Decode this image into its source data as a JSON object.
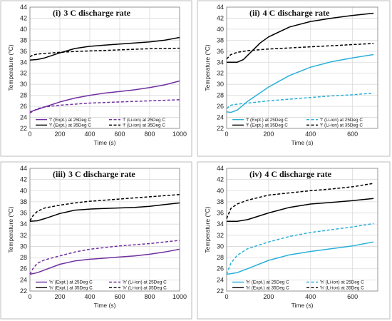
{
  "chart_data": [
    {
      "type": "line",
      "title_roman": "(i)",
      "title_text": "3 C discharge rate",
      "xlabel": "Time (s)",
      "ylabel": "Temperature (°C)",
      "xlim": [
        0,
        1000
      ],
      "ylim": [
        22,
        44
      ],
      "xticks": [
        0,
        200,
        400,
        600,
        800,
        1000
      ],
      "yticks": [
        22,
        24,
        26,
        28,
        30,
        32,
        34,
        36,
        38,
        40,
        42,
        44
      ],
      "grid": true,
      "legend_position": "bottom",
      "series": [
        {
          "name": "'f' (Expt.) at 25Deg C",
          "color": "#7030a0",
          "dash": "solid",
          "x": [
            0,
            100,
            200,
            300,
            400,
            500,
            600,
            700,
            800,
            900,
            1000
          ],
          "y": [
            25.0,
            25.9,
            26.8,
            27.5,
            28.0,
            28.4,
            28.7,
            29.0,
            29.4,
            29.9,
            30.6
          ]
        },
        {
          "name": "'f' (Li-ion) at 25Deg C",
          "color": "#7030a0",
          "dash": "dashed",
          "x": [
            0,
            50,
            100,
            200,
            300,
            400,
            500,
            600,
            700,
            800,
            900,
            1000
          ],
          "y": [
            24.8,
            25.6,
            25.9,
            26.2,
            26.4,
            26.6,
            26.7,
            26.8,
            26.9,
            27.0,
            27.1,
            27.2
          ]
        },
        {
          "name": "'f' (Expt.) at 35Deg C",
          "color": "#000000",
          "dash": "solid",
          "x": [
            0,
            50,
            100,
            200,
            300,
            400,
            500,
            600,
            700,
            800,
            900,
            1000
          ],
          "y": [
            34.4,
            34.5,
            34.8,
            35.7,
            36.5,
            36.9,
            37.1,
            37.3,
            37.5,
            37.7,
            38.0,
            38.5
          ]
        },
        {
          "name": "'f' (Li-ion) at 35Deg C",
          "color": "#000000",
          "dash": "dashed",
          "x": [
            0,
            20,
            50,
            100,
            200,
            300,
            400,
            500,
            600,
            700,
            800,
            900,
            1000
          ],
          "y": [
            35.0,
            35.3,
            35.5,
            35.6,
            35.8,
            35.95,
            36.05,
            36.15,
            36.25,
            36.35,
            36.45,
            36.5,
            36.55
          ]
        }
      ]
    },
    {
      "type": "line",
      "title_roman": "(ii)",
      "title_text": "4 C discharge rate",
      "xlabel": "Time (s)",
      "ylabel": "Temperature (°C)",
      "xlim": [
        0,
        720
      ],
      "ylim": [
        22,
        44
      ],
      "xticks": [
        0,
        200,
        400,
        600
      ],
      "yticks": [
        22,
        24,
        26,
        28,
        30,
        32,
        34,
        36,
        38,
        40,
        42,
        44
      ],
      "grid": true,
      "legend_position": "bottom",
      "series": [
        {
          "name": "'f' (Expt.) at 25Deg C",
          "color": "#2ab0d8",
          "dash": "solid",
          "x": [
            0,
            20,
            50,
            100,
            200,
            300,
            400,
            500,
            600,
            700
          ],
          "y": [
            25.0,
            24.9,
            25.3,
            26.9,
            29.5,
            31.6,
            33.1,
            34.1,
            34.8,
            35.4
          ]
        },
        {
          "name": "'f' (Li-ion) at 25Deg C",
          "color": "#2ab0d8",
          "dash": "dashed",
          "x": [
            0,
            20,
            50,
            100,
            200,
            300,
            400,
            500,
            600,
            700
          ],
          "y": [
            25.6,
            26.2,
            26.4,
            26.6,
            27.0,
            27.3,
            27.6,
            27.9,
            28.1,
            28.4
          ]
        },
        {
          "name": "'f' (Expt.) at 35Deg C",
          "color": "#000000",
          "dash": "solid",
          "x": [
            0,
            50,
            80,
            120,
            160,
            200,
            300,
            400,
            500,
            600,
            700
          ],
          "y": [
            34.0,
            34.0,
            34.5,
            36.0,
            37.5,
            38.6,
            40.4,
            41.4,
            42.0,
            42.5,
            42.9
          ]
        },
        {
          "name": "'f' (Li-ion) at 35Deg C",
          "color": "#000000",
          "dash": "dashed",
          "x": [
            0,
            20,
            50,
            100,
            200,
            300,
            400,
            500,
            600,
            700
          ],
          "y": [
            34.6,
            35.4,
            35.8,
            36.1,
            36.4,
            36.6,
            36.8,
            37.0,
            37.2,
            37.4
          ]
        }
      ]
    },
    {
      "type": "line",
      "title_roman": "(iii)",
      "title_text": "3 C discharge rate",
      "xlabel": "Time (s)",
      "ylabel": "Temperature (°C)",
      "xlim": [
        0,
        1000
      ],
      "ylim": [
        22,
        44
      ],
      "xticks": [
        0,
        200,
        400,
        600,
        800,
        1000
      ],
      "yticks": [
        22,
        24,
        26,
        28,
        30,
        32,
        34,
        36,
        38,
        40,
        42,
        44
      ],
      "grid": true,
      "legend_position": "bottom",
      "series": [
        {
          "name": "'h' (Expt.) at 25Deg C",
          "color": "#7030a0",
          "dash": "solid",
          "x": [
            0,
            50,
            100,
            200,
            300,
            400,
            500,
            600,
            700,
            800,
            900,
            1000
          ],
          "y": [
            25.0,
            25.3,
            25.8,
            26.8,
            27.4,
            27.7,
            27.9,
            28.1,
            28.3,
            28.6,
            29.0,
            29.5
          ]
        },
        {
          "name": "'h' (Li-ion) at 25Deg C",
          "color": "#7030a0",
          "dash": "dashed",
          "x": [
            0,
            20,
            50,
            100,
            200,
            300,
            400,
            500,
            600,
            700,
            800,
            900,
            1000
          ],
          "y": [
            25.0,
            26.0,
            27.0,
            27.6,
            28.3,
            29.0,
            29.5,
            29.8,
            30.1,
            30.3,
            30.5,
            30.8,
            31.1
          ]
        },
        {
          "name": "'h' (Expt.) at 35Deg C",
          "color": "#000000",
          "dash": "solid",
          "x": [
            0,
            50,
            100,
            200,
            300,
            400,
            500,
            600,
            700,
            800,
            900,
            1000
          ],
          "y": [
            34.5,
            34.6,
            35.0,
            35.9,
            36.5,
            36.7,
            36.8,
            36.9,
            37.0,
            37.2,
            37.5,
            37.8
          ]
        },
        {
          "name": "'h' (Li-ion) at 35Deg C",
          "color": "#000000",
          "dash": "dashed",
          "x": [
            0,
            20,
            50,
            100,
            200,
            300,
            400,
            500,
            600,
            700,
            800,
            900,
            1000
          ],
          "y": [
            34.6,
            35.5,
            36.3,
            36.9,
            37.4,
            37.8,
            38.1,
            38.3,
            38.5,
            38.7,
            38.9,
            39.1,
            39.3
          ]
        }
      ]
    },
    {
      "type": "line",
      "title_roman": "(iv)",
      "title_text": "4 C discharge rate",
      "xlabel": "Time (s)",
      "ylabel": "Temperature (°C)",
      "xlim": [
        0,
        720
      ],
      "ylim": [
        22,
        44
      ],
      "xticks": [
        0,
        200,
        400,
        600
      ],
      "yticks": [
        22,
        24,
        26,
        28,
        30,
        32,
        34,
        36,
        38,
        40,
        42,
        44
      ],
      "grid": true,
      "legend_position": "bottom",
      "series": [
        {
          "name": "'h' (Expt.) at 25Deg C",
          "color": "#2ab0d8",
          "dash": "solid",
          "x": [
            0,
            50,
            100,
            200,
            300,
            400,
            500,
            600,
            700
          ],
          "y": [
            25.0,
            25.3,
            26.0,
            27.5,
            28.5,
            29.1,
            29.6,
            30.1,
            30.8
          ]
        },
        {
          "name": "'h' (Li-ion) at 25Deg C",
          "color": "#2ab0d8",
          "dash": "dashed",
          "x": [
            0,
            20,
            50,
            100,
            200,
            300,
            400,
            500,
            600,
            700
          ],
          "y": [
            25.0,
            27.0,
            28.4,
            29.6,
            30.8,
            31.8,
            32.5,
            33.0,
            33.5,
            34.1
          ]
        },
        {
          "name": "'h' (Expt.) at 35Deg C",
          "color": "#000000",
          "dash": "solid",
          "x": [
            0,
            50,
            100,
            200,
            300,
            400,
            500,
            600,
            700
          ],
          "y": [
            34.5,
            34.5,
            34.8,
            36.0,
            37.0,
            37.6,
            37.9,
            38.2,
            38.6
          ]
        },
        {
          "name": "'h' (Li-ion) at 35Deg C",
          "color": "#000000",
          "dash": "dashed",
          "x": [
            0,
            20,
            50,
            100,
            200,
            300,
            400,
            500,
            600,
            700
          ],
          "y": [
            35.0,
            36.8,
            37.6,
            38.3,
            39.2,
            39.6,
            40.0,
            40.3,
            40.7,
            41.3
          ]
        }
      ]
    }
  ]
}
